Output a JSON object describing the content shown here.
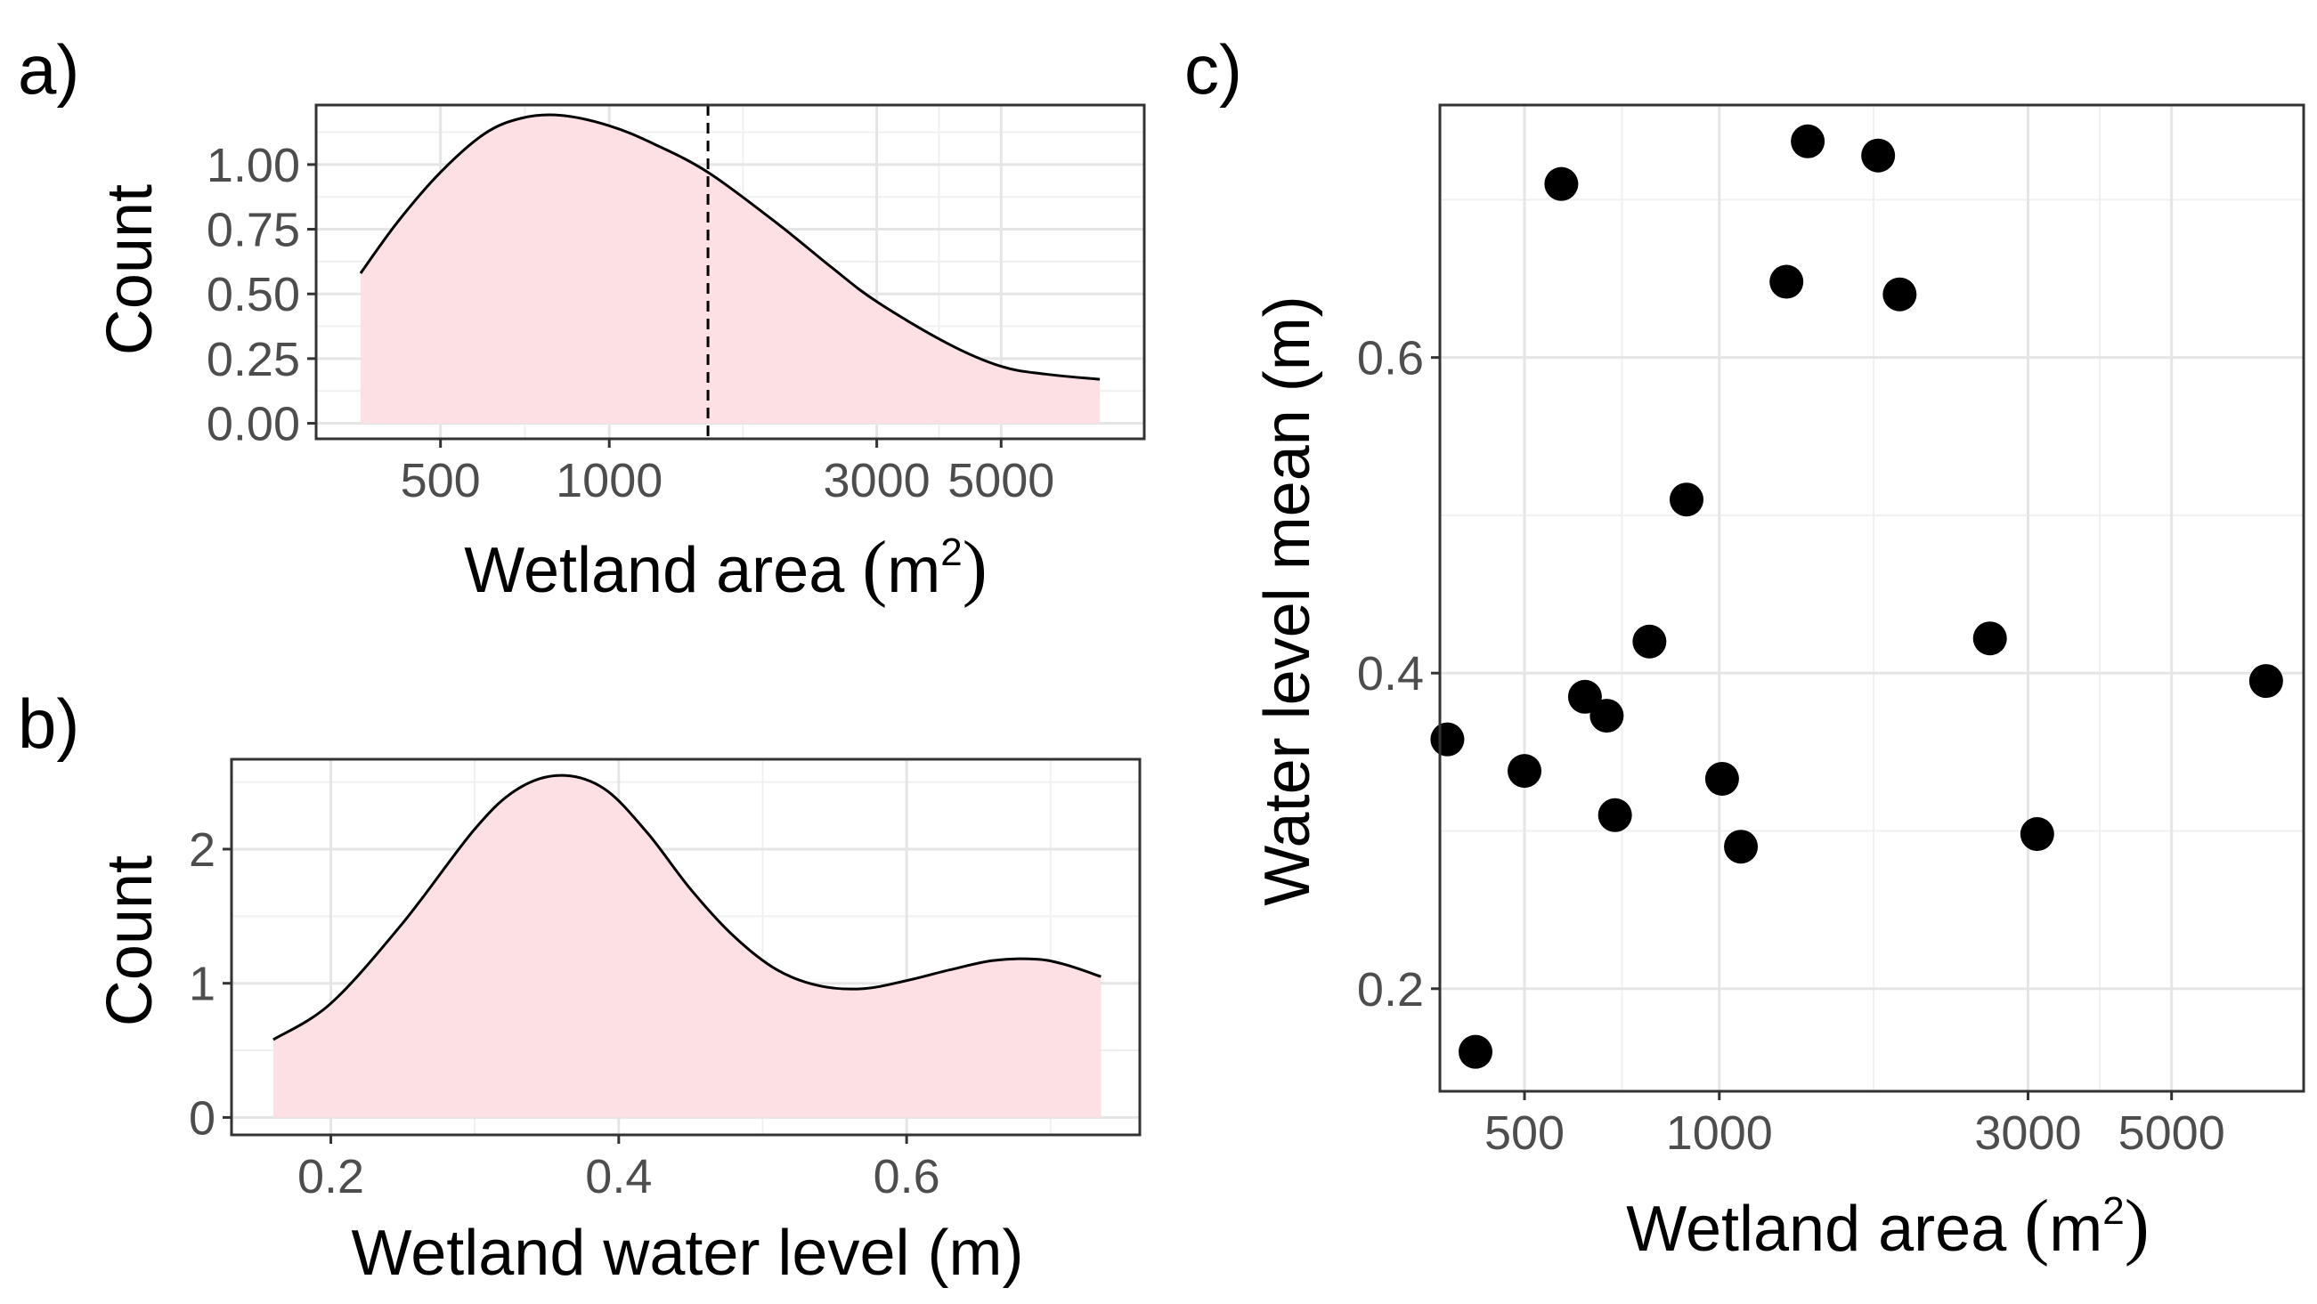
{
  "chart_data": [
    {
      "panel": "a)",
      "type": "area",
      "xlabel": "Wetland area (m2)",
      "xlabel_parts": {
        "main": "Wetland area ",
        "open": "(",
        "unit": "m",
        "sup": "2",
        "close": ")"
      },
      "ylabel": "Count",
      "x_scale": "log10",
      "x_ticks": [
        500,
        1000,
        3000,
        5000
      ],
      "x_tick_labels": [
        "500",
        "1000",
        "3000",
        "5000"
      ],
      "y_ticks": [
        0,
        0.25,
        0.5,
        0.75,
        1.0
      ],
      "y_tick_labels": [
        "0.00",
        "0.25",
        "0.50",
        "0.75",
        "1.00"
      ],
      "xlim": [
        300,
        9000
      ],
      "ylim": [
        -0.06,
        1.23
      ],
      "grid": true,
      "fill_color": "#fde0e3",
      "line_color": "#000000",
      "vline_x": 1500,
      "vline_style": "dashed",
      "x": [
        360,
        420,
        500,
        600,
        700,
        820,
        1000,
        1200,
        1500,
        2000,
        2500,
        3000,
        4000,
        5000,
        6000,
        7500
      ],
      "y": [
        0.58,
        0.78,
        0.97,
        1.12,
        1.18,
        1.19,
        1.15,
        1.08,
        0.97,
        0.77,
        0.6,
        0.47,
        0.31,
        0.22,
        0.19,
        0.17
      ]
    },
    {
      "panel": "b)",
      "type": "area",
      "xlabel": "Wetland water level (m)",
      "ylabel": "Count",
      "x_scale": "linear",
      "x_ticks": [
        0.2,
        0.4,
        0.6
      ],
      "x_tick_labels": [
        "0.2",
        "0.4",
        "0.6"
      ],
      "y_ticks": [
        0,
        1,
        2
      ],
      "y_tick_labels": [
        "0",
        "1",
        "2"
      ],
      "xlim": [
        0.131,
        0.762
      ],
      "ylim": [
        -0.13,
        2.67
      ],
      "grid": true,
      "fill_color": "#fde0e3",
      "line_color": "#000000",
      "x": [
        0.16,
        0.2,
        0.25,
        0.3,
        0.33,
        0.36,
        0.39,
        0.42,
        0.45,
        0.48,
        0.51,
        0.54,
        0.57,
        0.6,
        0.63,
        0.66,
        0.69,
        0.71,
        0.735
      ],
      "y": [
        0.58,
        0.85,
        1.45,
        2.15,
        2.45,
        2.55,
        2.45,
        2.12,
        1.7,
        1.35,
        1.1,
        0.98,
        0.96,
        1.02,
        1.1,
        1.17,
        1.18,
        1.14,
        1.05
      ]
    },
    {
      "panel": "c)",
      "type": "scatter",
      "xlabel": "Wetland area (m2)",
      "xlabel_parts": {
        "main": "Wetland area ",
        "open": "(",
        "unit": "m",
        "sup": "2",
        "close": ")"
      },
      "ylabel": "Water level mean (m)",
      "x_scale": "log10",
      "x_ticks": [
        500,
        1000,
        3000,
        5000
      ],
      "x_tick_labels": [
        "500",
        "1000",
        "3000",
        "5000"
      ],
      "y_ticks": [
        0.2,
        0.4,
        0.6
      ],
      "y_tick_labels": [
        "0.2",
        "0.4",
        "0.6"
      ],
      "xlim": [
        370,
        8000
      ],
      "ylim": [
        0.135,
        0.76
      ],
      "grid": true,
      "point_color": "#000000",
      "points": [
        {
          "x": 380,
          "y": 0.358
        },
        {
          "x": 420,
          "y": 0.16
        },
        {
          "x": 500,
          "y": 0.338
        },
        {
          "x": 570,
          "y": 0.71
        },
        {
          "x": 620,
          "y": 0.385
        },
        {
          "x": 670,
          "y": 0.373
        },
        {
          "x": 690,
          "y": 0.31
        },
        {
          "x": 780,
          "y": 0.42
        },
        {
          "x": 890,
          "y": 0.51
        },
        {
          "x": 1010,
          "y": 0.333
        },
        {
          "x": 1080,
          "y": 0.29
        },
        {
          "x": 1270,
          "y": 0.648
        },
        {
          "x": 1370,
          "y": 0.737
        },
        {
          "x": 1760,
          "y": 0.728
        },
        {
          "x": 1900,
          "y": 0.64
        },
        {
          "x": 2620,
          "y": 0.422
        },
        {
          "x": 3100,
          "y": 0.298
        },
        {
          "x": 7000,
          "y": 0.395
        }
      ]
    }
  ]
}
